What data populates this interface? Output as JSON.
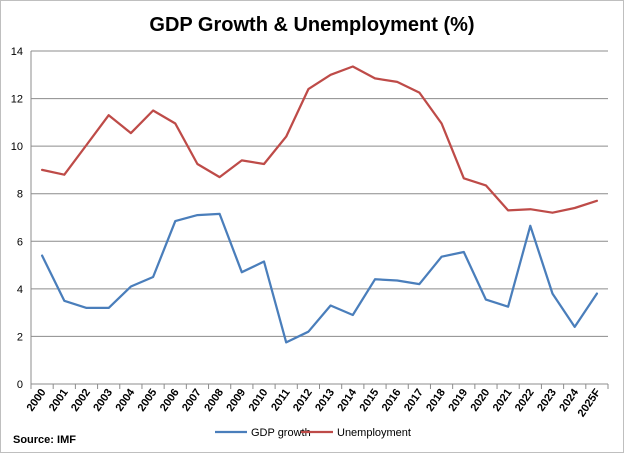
{
  "chart_data": {
    "type": "line",
    "title": "GDP Growth & Unemployment (%)",
    "xlabel": "",
    "ylabel": "",
    "ylim": [
      0,
      14
    ],
    "yticks": [
      0,
      2,
      4,
      6,
      8,
      10,
      12,
      14
    ],
    "grid": true,
    "legend_position": "bottom",
    "source": "Source: IMF",
    "categories": [
      "2000",
      "2001",
      "2002",
      "2003",
      "2004",
      "2005",
      "2006",
      "2007",
      "2008",
      "2009",
      "2010",
      "2011",
      "2012",
      "2013",
      "2014",
      "2015",
      "2016",
      "2017",
      "2018",
      "2019",
      "2020",
      "2021",
      "2022",
      "2023",
      "2024",
      "2025F"
    ],
    "series": [
      {
        "name": "GDP growth",
        "color": "#4a7ebb",
        "values": [
          5.4,
          3.5,
          3.2,
          3.2,
          4.1,
          4.5,
          6.85,
          7.1,
          7.15,
          4.7,
          5.15,
          1.75,
          2.2,
          3.3,
          2.9,
          4.4,
          4.35,
          4.2,
          5.35,
          5.55,
          3.55,
          3.25,
          6.65,
          3.8,
          2.4,
          3.8
        ]
      },
      {
        "name": "Unemployment",
        "color": "#be4b48",
        "values": [
          9.0,
          8.8,
          10.05,
          11.3,
          10.55,
          11.5,
          10.95,
          9.25,
          8.7,
          9.4,
          9.25,
          10.4,
          12.4,
          13.0,
          13.35,
          12.85,
          12.7,
          12.25,
          10.95,
          8.65,
          8.35,
          7.3,
          7.35,
          7.2,
          7.4,
          7.7
        ]
      }
    ]
  }
}
